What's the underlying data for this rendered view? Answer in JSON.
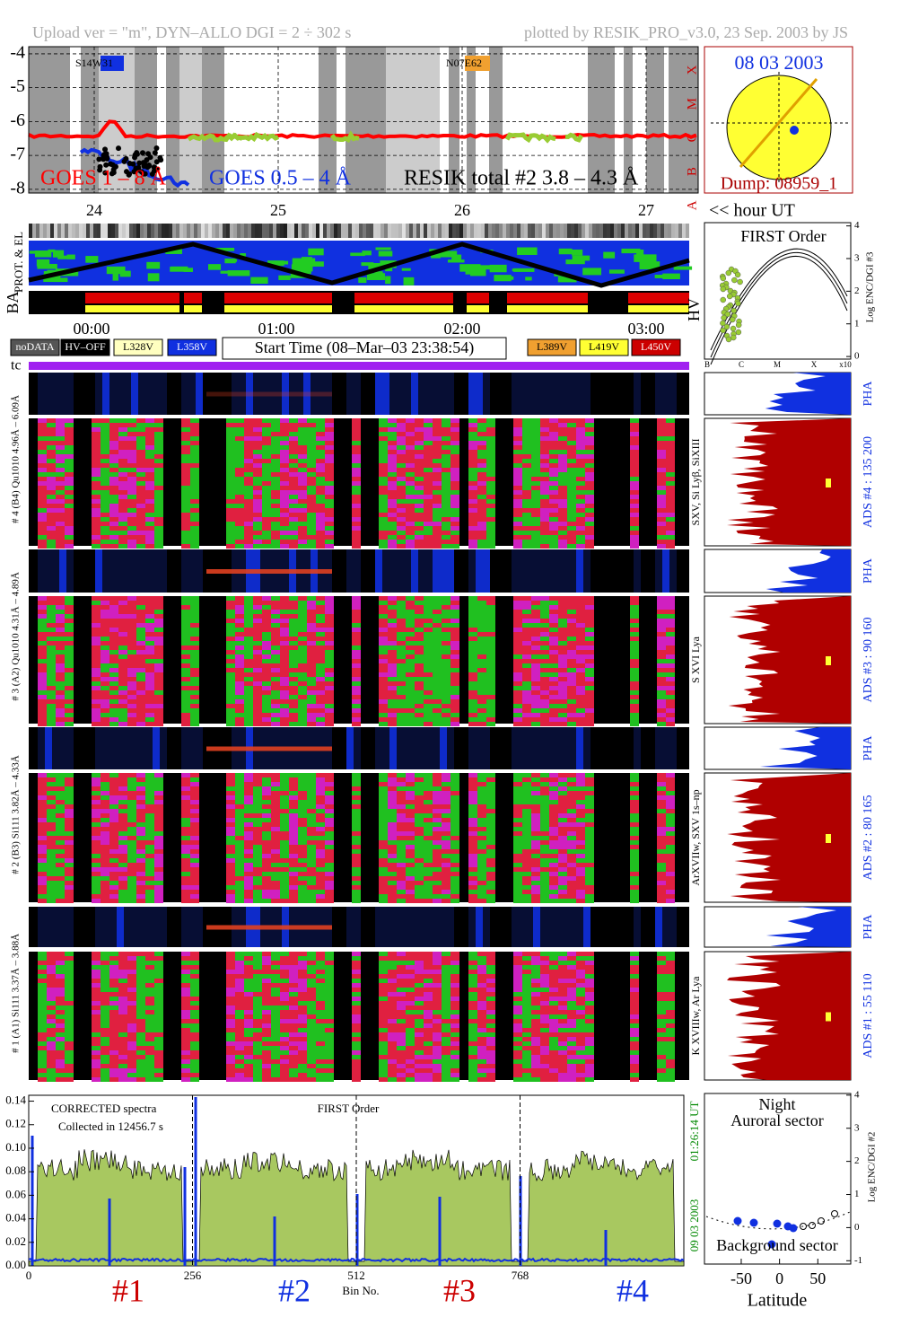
{
  "header": {
    "left": "Upload ver = \"m\", DYN–ALLO DGI =   2 ÷ 302 s",
    "right": "plotted by RESIK_PRO_v3.0, 23 Sep. 2003 by JS"
  },
  "goes": {
    "yticks": [
      -4,
      -5,
      -6,
      -7,
      -8
    ],
    "ylim": [
      -8.11,
      -3.79
    ],
    "classes": [
      "X",
      "M",
      "C",
      "B",
      "A"
    ],
    "labels": [
      "GOES 1 – 8 Å",
      "GOES 0.5 – 4 Å",
      "RESIK total #2  3.8 – 4.3 Å"
    ],
    "regions": [
      "S14W31",
      "N07E62"
    ]
  },
  "sun": {
    "date": "08 03 2003",
    "dump": "Dump: 08959_1"
  },
  "days": {
    "labels": [
      "24",
      "25",
      "26",
      "27"
    ],
    "unit": "<< hour UT"
  },
  "strips": [
    "PROT. & EL",
    "BA"
  ],
  "hv": {
    "title": "FIRST Order",
    "axis": "Log ENC/DGI #3",
    "label": "HV",
    "yticks": [
      0,
      1,
      2,
      3,
      4
    ],
    "ylim": [
      -0.08,
      4.1
    ],
    "classes": [
      "B",
      "C",
      "M",
      "X",
      "x10"
    ]
  },
  "times": [
    "00:00",
    "01:00",
    "02:00",
    "03:00"
  ],
  "legend_left": [
    "noDATA",
    "HV–OFF",
    "L328V",
    "L358V"
  ],
  "start": "Start Time (08–Mar–03 23:38:54)",
  "legend_right": [
    "L389V",
    "L419V",
    "L450V"
  ],
  "tc": "tc",
  "channels": [
    {
      "label": "# 4 (B4) Qu1010 4.96Å – 6.09Å",
      "pha": "PHA",
      "ads": "ADS #4 :   135 200",
      "lines": "SXV, Si Lyβ, SiXIII"
    },
    {
      "label": "# 3 (A2) Qu1010 4.31Å – 4.89Å",
      "pha": "PHA",
      "ads": "ADS #3 :    90 160",
      "lines": "S XVI Lya"
    },
    {
      "label": "# 2 (B3) Si111 3.82Å – 4.33Å",
      "pha": "PHA",
      "ads": "ADS #2 :    80 165",
      "lines": "ArXVIIw, SXV 1s–np"
    },
    {
      "label": "# 1 (A1) Si111 3.37Å – 3.88Å",
      "pha": "PHA",
      "ads": "ADS #1 :    55 110",
      "lines": "K XVIIIw, Ar Lya"
    }
  ],
  "spectrum": {
    "ylim": [
      0,
      0.145
    ],
    "xlim": [
      0,
      1024
    ],
    "yticks": [
      {
        "value": 0,
        "label": "0.00"
      },
      {
        "value": 0.02,
        "label": "0.02"
      },
      {
        "value": 0.04,
        "label": "0.04"
      },
      {
        "value": 0.06,
        "label": "0.06"
      },
      {
        "value": 0.08,
        "label": "0.08"
      },
      {
        "value": 0.1,
        "label": "0.10"
      },
      {
        "value": 0.12,
        "label": "0.12"
      },
      {
        "value": 0.14,
        "label": "0.14"
      }
    ],
    "xticks": [
      0,
      256,
      512,
      768
    ],
    "notes": [
      "CORRECTED spectra",
      "Collected in 12456.7 s",
      "FIRST Order"
    ],
    "time": "01:26:14 UT",
    "date": "09 03 2003",
    "sections": [
      "#1",
      "#2",
      "#3",
      "#4"
    ],
    "xlabel": "Bin No."
  },
  "latitude": {
    "texts": [
      "Night",
      "Auroral sector",
      "Background sector"
    ],
    "axis": "Log ENC/DGI #2",
    "xlabel": "Latitude",
    "xticks": [
      -50,
      0,
      50
    ],
    "xlim": [
      -98,
      93
    ],
    "yticks": [
      -1,
      0,
      1,
      2,
      3,
      4
    ],
    "ylim": [
      -1.1,
      4.05
    ]
  }
}
